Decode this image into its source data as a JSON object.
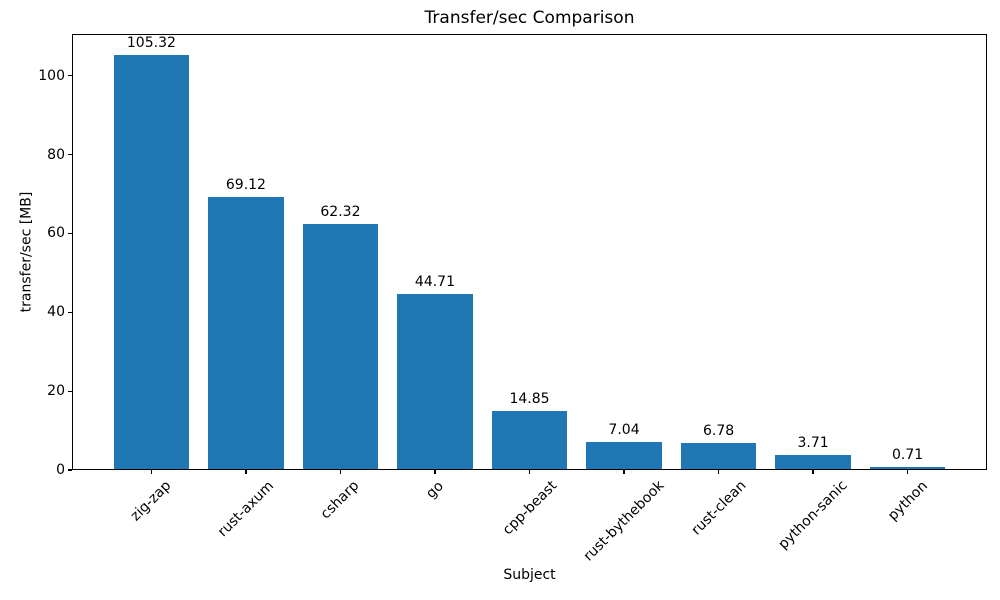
{
  "chart_data": {
    "type": "bar",
    "title": "Transfer/sec Comparison",
    "xlabel": "Subject",
    "ylabel": "transfer/sec [MB]",
    "categories": [
      "zig-zap",
      "rust-axum",
      "csharp",
      "go",
      "cpp-beast",
      "rust-bythebook",
      "rust-clean",
      "python-sanic",
      "python"
    ],
    "values": [
      105.32,
      69.12,
      62.32,
      44.71,
      14.85,
      7.04,
      6.78,
      3.71,
      0.71
    ],
    "value_labels": [
      "105.32",
      "69.12",
      "62.32",
      "44.71",
      "14.85",
      "7.04",
      "6.78",
      "3.71",
      "0.71"
    ],
    "yticks": [
      0,
      20,
      40,
      60,
      80,
      100
    ],
    "ylim": [
      0,
      110.59
    ],
    "bar_color": "#1f77b4",
    "text_color": "#000000",
    "grid": false,
    "legend": false
  }
}
